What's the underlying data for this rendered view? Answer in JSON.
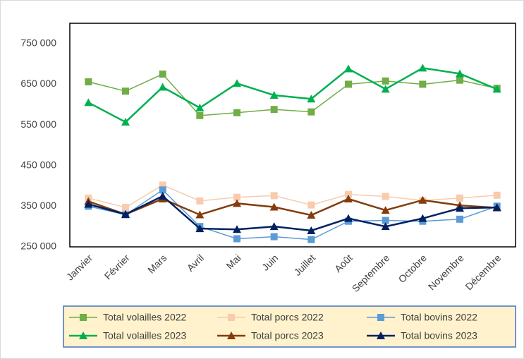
{
  "chart_data": {
    "type": "line",
    "categories": [
      "Janvier",
      "Février",
      "Mars",
      "Avril",
      "Mai",
      "Juin",
      "Juillet",
      "Août",
      "Septembre",
      "Octobre",
      "Novembre",
      "Décembre"
    ],
    "series": [
      {
        "name": "Total volailles 2022",
        "color": "#70AD47",
        "marker": "square",
        "values": [
          656000,
          633000,
          675000,
          573000,
          580000,
          588000,
          582000,
          650000,
          658000,
          650000,
          660000,
          640000
        ]
      },
      {
        "name": "Total porcs 2022",
        "color": "#F8CBAD",
        "marker": "square",
        "values": [
          370000,
          347000,
          402000,
          363000,
          372000,
          376000,
          353000,
          379000,
          374000,
          364000,
          370000,
          377000
        ]
      },
      {
        "name": "Total bovins 2022",
        "color": "#5B9BD5",
        "marker": "square",
        "values": [
          350000,
          329000,
          390000,
          300000,
          270000,
          275000,
          268000,
          313000,
          315000,
          313000,
          318000,
          350000
        ]
      },
      {
        "name": "Total volailles 2023",
        "color": "#00B050",
        "marker": "triangle",
        "values": [
          605000,
          557000,
          643000,
          592000,
          652000,
          623000,
          614000,
          688000,
          638000,
          690000,
          676000,
          638000
        ]
      },
      {
        "name": "Total porcs 2023",
        "color": "#843C0C",
        "marker": "triangle",
        "values": [
          362000,
          330000,
          368000,
          329000,
          357000,
          348000,
          328000,
          368000,
          340000,
          365000,
          352000,
          346000
        ]
      },
      {
        "name": "Total bovins 2023",
        "color": "#002060",
        "marker": "triangle",
        "values": [
          355000,
          330000,
          375000,
          295000,
          293000,
          300000,
          290000,
          320000,
          300000,
          320000,
          345000,
          347000
        ]
      }
    ],
    "ylim": [
      250000,
      800000
    ],
    "yticks": [
      {
        "value": 250000,
        "label": "250 000"
      },
      {
        "value": 350000,
        "label": "350 000"
      },
      {
        "value": 450000,
        "label": "450 000"
      },
      {
        "value": 550000,
        "label": "550 000"
      },
      {
        "value": 650000,
        "label": "650 000"
      },
      {
        "value": 750000,
        "label": "750 000"
      }
    ],
    "grid": false,
    "legend": "bottom"
  }
}
